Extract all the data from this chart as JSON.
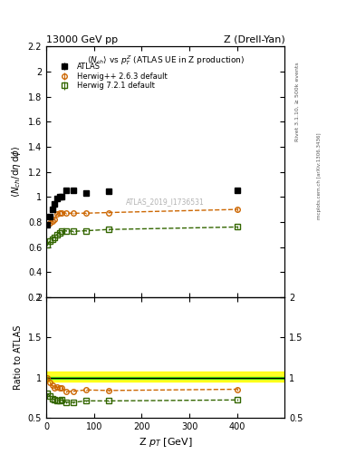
{
  "title_left": "13000 GeV pp",
  "title_right": "Z (Drell-Yan)",
  "inner_title": "<N_{ch}> vs p_{T}^{Z} (ATLAS UE in Z production)",
  "ylabel_main": "<N_{ch}/dη dφ>",
  "ylabel_ratio": "Ratio to ATLAS",
  "xlabel": "Z p_{T} [GeV]",
  "watermark": "ATLAS_2019_I1736531",
  "rivet_label": "Rivet 3.1.10, ≥ 500k events",
  "mcplots_label": "mcplots.cern.ch [arXiv:1306.3436]",
  "atlas_x": [
    2.5,
    7.5,
    12.5,
    17.5,
    22.5,
    27.5,
    32.5,
    42.5,
    57.5,
    82.5,
    130.0,
    400.0
  ],
  "atlas_y": [
    0.775,
    0.84,
    0.9,
    0.945,
    0.985,
    1.0,
    1.005,
    1.055,
    1.05,
    1.03,
    1.045,
    1.055
  ],
  "atlas_yerr": [
    0.01,
    0.01,
    0.01,
    0.01,
    0.01,
    0.01,
    0.01,
    0.01,
    0.01,
    0.01,
    0.01,
    0.02
  ],
  "herwigpp_x": [
    2.5,
    7.5,
    12.5,
    17.5,
    22.5,
    27.5,
    32.5,
    42.5,
    57.5,
    82.5,
    130.0,
    400.0
  ],
  "herwigpp_y": [
    0.775,
    0.79,
    0.81,
    0.82,
    0.865,
    0.87,
    0.875,
    0.87,
    0.87,
    0.87,
    0.875,
    0.9
  ],
  "herwigpp_yerr": [
    0.005,
    0.005,
    0.005,
    0.005,
    0.005,
    0.005,
    0.005,
    0.005,
    0.005,
    0.005,
    0.005,
    0.015
  ],
  "herwig721_x": [
    2.5,
    7.5,
    12.5,
    17.5,
    22.5,
    27.5,
    32.5,
    42.5,
    57.5,
    82.5,
    130.0,
    400.0
  ],
  "herwig721_y": [
    0.62,
    0.645,
    0.665,
    0.68,
    0.7,
    0.715,
    0.725,
    0.73,
    0.725,
    0.73,
    0.74,
    0.76
  ],
  "herwig721_yerr": [
    0.005,
    0.005,
    0.005,
    0.005,
    0.005,
    0.005,
    0.005,
    0.005,
    0.005,
    0.005,
    0.005,
    0.01
  ],
  "ratio_herwigpp_y": [
    1.0,
    0.94,
    0.9,
    0.868,
    0.878,
    0.87,
    0.87,
    0.824,
    0.829,
    0.845,
    0.838,
    0.853
  ],
  "ratio_herwigpp_yerr": [
    0.008,
    0.008,
    0.008,
    0.008,
    0.008,
    0.008,
    0.008,
    0.008,
    0.008,
    0.008,
    0.008,
    0.018
  ],
  "ratio_herwig721_y": [
    0.8,
    0.767,
    0.739,
    0.719,
    0.711,
    0.715,
    0.721,
    0.692,
    0.69,
    0.709,
    0.708,
    0.72
  ],
  "ratio_herwig721_yerr": [
    0.008,
    0.008,
    0.008,
    0.008,
    0.008,
    0.008,
    0.008,
    0.008,
    0.008,
    0.008,
    0.008,
    0.012
  ],
  "band_yellow_low": 0.95,
  "band_yellow_high": 1.07,
  "band_green_low": 0.985,
  "band_green_high": 1.005,
  "xlim": [
    0,
    500
  ],
  "ylim_main": [
    0.2,
    2.2
  ],
  "ylim_ratio": [
    0.5,
    2.0
  ],
  "color_herwigpp": "#cc6600",
  "color_herwig721": "#336600",
  "color_atlas": "#000000",
  "color_band_yellow": "#ffff00",
  "color_band_green": "#00cc00"
}
